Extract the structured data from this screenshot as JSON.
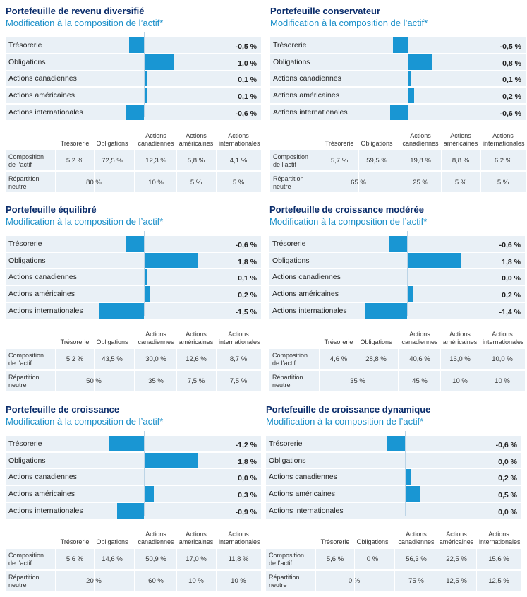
{
  "table_headers": {
    "tresorerie": "Trésorerie",
    "obligations": "Obligations",
    "canadiennes_1": "Actions",
    "canadiennes_2": "canadiennes",
    "americaines_1": "Actions",
    "americaines_2": "américaines",
    "internationales_1": "Actions",
    "internationales_2": "internationales"
  },
  "row_labels": {
    "composition_1": "Composition",
    "composition_2": "de l’actif",
    "neutre_1": "Répartition",
    "neutre_2": "neutre"
  },
  "colors": {
    "bar": "#1996d3",
    "title": "#0b2d6b",
    "subtitle": "#1a8fc9",
    "row_bg": "#e9f0f6"
  },
  "chart_data": [
    {
      "type": "bar",
      "title": "Portefeuille de revenu diversifié",
      "subtitle": "Modification à la composition de l’actif*",
      "categories": [
        "Trésorerie",
        "Obligations",
        "Actions canadiennes",
        "Actions américaines",
        "Actions internationales"
      ],
      "values": [
        -0.5,
        1.0,
        0.1,
        0.1,
        -0.6
      ],
      "value_labels": [
        "-0,5 %",
        "1,0 %",
        "0,1 %",
        "0,1 %",
        "-0,6 %"
      ],
      "composition": [
        "5,2 %",
        "72,5 %",
        "12,3 %",
        "5,8 %",
        "4,1 %"
      ],
      "neutre": [
        "80 %",
        "10 %",
        "5 %",
        "5 %"
      ]
    },
    {
      "type": "bar",
      "title": "Portefeuille conservateur",
      "subtitle": "Modification à la composition de l’actif*",
      "categories": [
        "Trésorerie",
        "Obligations",
        "Actions canadiennes",
        "Actions américaines",
        "Actions internationales"
      ],
      "values": [
        -0.5,
        0.8,
        0.1,
        0.2,
        -0.6
      ],
      "value_labels": [
        "-0,5 %",
        "0,8 %",
        "0,1 %",
        "0,2 %",
        "-0,6 %"
      ],
      "composition": [
        "5,7 %",
        "59,5 %",
        "19,8 %",
        "8,8 %",
        "6,2 %"
      ],
      "neutre": [
        "65 %",
        "25 %",
        "5 %",
        "5 %"
      ]
    },
    {
      "type": "bar",
      "title": "Portefeuille équilibré",
      "subtitle": "Modification à la composition de l’actif*",
      "categories": [
        "Trésorerie",
        "Obligations",
        "Actions canadiennes",
        "Actions américaines",
        "Actions internationales"
      ],
      "values": [
        -0.6,
        1.8,
        0.1,
        0.2,
        -1.5
      ],
      "value_labels": [
        "-0,6 %",
        "1,8 %",
        "0,1 %",
        "0,2 %",
        "-1,5 %"
      ],
      "composition": [
        "5,2 %",
        "43,5 %",
        "30,0 %",
        "12,6 %",
        "8,7 %"
      ],
      "neutre": [
        "50 %",
        "35 %",
        "7,5 %",
        "7,5 %"
      ]
    },
    {
      "type": "bar",
      "title": "Portefeuille de croissance modérée",
      "subtitle": "Modification à la composition de l’actif*",
      "categories": [
        "Trésorerie",
        "Obligations",
        "Actions canadiennes",
        "Actions américaines",
        "Actions internationales"
      ],
      "values": [
        -0.6,
        1.8,
        0.0,
        0.2,
        -1.4
      ],
      "value_labels": [
        "-0,6 %",
        "1,8 %",
        "0,0 %",
        "0,2 %",
        "-1,4 %"
      ],
      "composition": [
        "4,6 %",
        "28,8 %",
        "40,6 %",
        "16,0 %",
        "10,0 %"
      ],
      "neutre": [
        "35 %",
        "45 %",
        "10 %",
        "10 %"
      ]
    },
    {
      "type": "bar",
      "title": "Portefeuille de croissance",
      "subtitle": "Modification à la composition de l’actif*",
      "categories": [
        "Trésorerie",
        "Obligations",
        "Actions canadiennes",
        "Actions américaines",
        "Actions internationales"
      ],
      "values": [
        -1.2,
        1.8,
        0.0,
        0.3,
        -0.9
      ],
      "value_labels": [
        "-1,2 %",
        "1,8 %",
        "0,0 %",
        "0,3 %",
        "-0,9 %"
      ],
      "composition": [
        "5,6 %",
        "14,6 %",
        "50,9 %",
        "17,0 %",
        "11,8 %"
      ],
      "neutre": [
        "20 %",
        "60 %",
        "10 %",
        "10 %"
      ]
    },
    {
      "type": "bar",
      "title": "Portefeuille de croissance dynamique",
      "subtitle": "Modification à la composition de l’actif*",
      "categories": [
        "Trésorerie",
        "Obligations",
        "Actions canadiennes",
        "Actions américaines",
        "Actions internationales"
      ],
      "values": [
        -0.6,
        0.0,
        0.2,
        0.5,
        0.0
      ],
      "value_labels": [
        "-0,6 %",
        "0,0 %",
        "0,2 %",
        "0,5 %",
        "0,0 %"
      ],
      "composition": [
        "5,6 %",
        "0 %",
        "56,3 %",
        "22,5 %",
        "15,6 %"
      ],
      "neutre": [
        "0 %",
        "75 %",
        "12,5 %",
        "12,5 %"
      ]
    }
  ]
}
